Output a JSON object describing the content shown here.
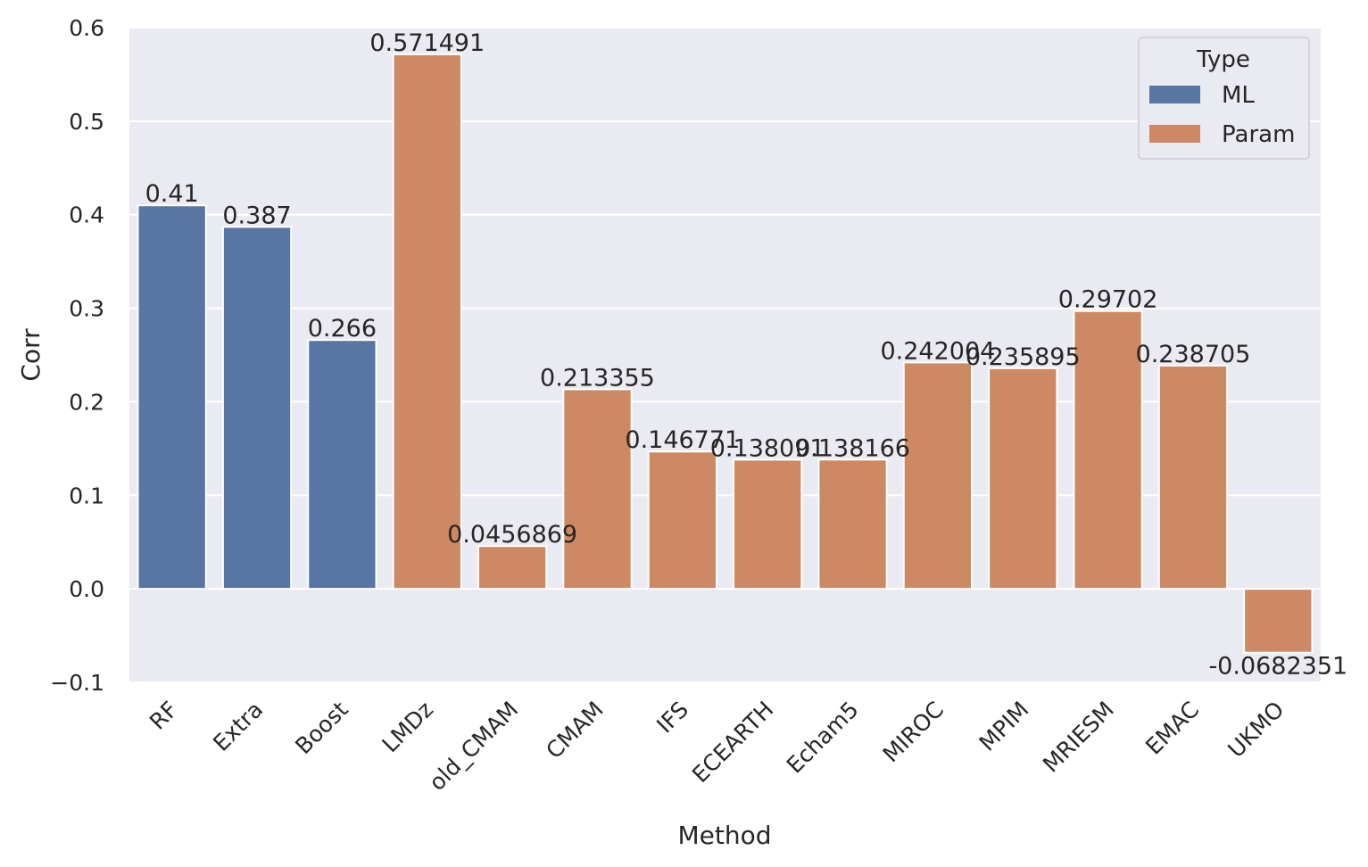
{
  "chart_data": {
    "type": "bar",
    "xlabel": "Method",
    "ylabel": "Corr",
    "ylim": [
      -0.1,
      0.6
    ],
    "yticks": [
      "−0.1",
      "0.0",
      "0.1",
      "0.2",
      "0.3",
      "0.4",
      "0.5",
      "0.6"
    ],
    "grid": true,
    "legend": {
      "title": "Type",
      "placement": "top-right",
      "entries": [
        {
          "name": "ML",
          "color": "#5875a4"
        },
        {
          "name": "Param",
          "color": "#cc8963"
        }
      ]
    },
    "bars": [
      {
        "category": "RF",
        "type": "ML",
        "value": 0.41,
        "label": "0.41"
      },
      {
        "category": "Extra",
        "type": "ML",
        "value": 0.387,
        "label": "0.387"
      },
      {
        "category": "Boost",
        "type": "ML",
        "value": 0.266,
        "label": "0.266"
      },
      {
        "category": "LMDz",
        "type": "Param",
        "value": 0.571491,
        "label": "0.571491"
      },
      {
        "category": "old_CMAM",
        "type": "Param",
        "value": 0.0456869,
        "label": "0.0456869"
      },
      {
        "category": "CMAM",
        "type": "Param",
        "value": 0.213355,
        "label": "0.213355"
      },
      {
        "category": "IFS",
        "type": "Param",
        "value": 0.146771,
        "label": "0.146771"
      },
      {
        "category": "ECEARTH",
        "type": "Param",
        "value": 0.138091,
        "label": "0.138091"
      },
      {
        "category": "Echam5",
        "type": "Param",
        "value": 0.138166,
        "label": "0.138166"
      },
      {
        "category": "MIROC",
        "type": "Param",
        "value": 0.242004,
        "label": "0.242004"
      },
      {
        "category": "MPIM",
        "type": "Param",
        "value": 0.235895,
        "label": "0.235895"
      },
      {
        "category": "MRIESM",
        "type": "Param",
        "value": 0.29702,
        "label": "0.29702"
      },
      {
        "category": "EMAC",
        "type": "Param",
        "value": 0.238705,
        "label": "0.238705"
      },
      {
        "category": "UKMO",
        "type": "Param",
        "value": -0.0682351,
        "label": "-0.0682351"
      }
    ]
  }
}
